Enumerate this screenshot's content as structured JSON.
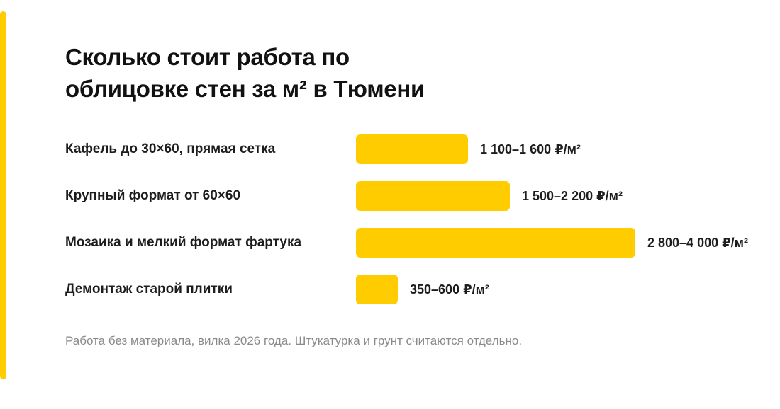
{
  "chart_data": {
    "type": "bar",
    "orientation": "horizontal",
    "title": "Сколько стоит работа по\nоблицовке стен за м² в Тюмени",
    "categories": [
      "Кафель до 30×60, прямая сетка",
      "Крупный формат от 60×60",
      "Мозаика и мелкий формат фартука",
      "Демонтаж старой плитки"
    ],
    "series": [
      {
        "ranges": [
          [
            1100,
            1600
          ],
          [
            1500,
            2200
          ],
          [
            2800,
            4000
          ],
          [
            350,
            600
          ]
        ],
        "values": [
          1600,
          2200,
          4000,
          600
        ],
        "value_labels": [
          "1 100–1 600 ₽/м²",
          "1 500–2 200 ₽/м²",
          "2 800–4 000 ₽/м²",
          "350–600 ₽/м²"
        ]
      }
    ],
    "xlim": [
      0,
      4000
    ],
    "grid": false,
    "bar_color": "#ffcc00",
    "footnote": "Работа без материала, вилка 2026 года. Штукатурка и грунт считаются отдельно."
  },
  "colors": {
    "accent": "#ffcc00",
    "text": "#1d1d1f",
    "muted": "#8a8a8a"
  }
}
